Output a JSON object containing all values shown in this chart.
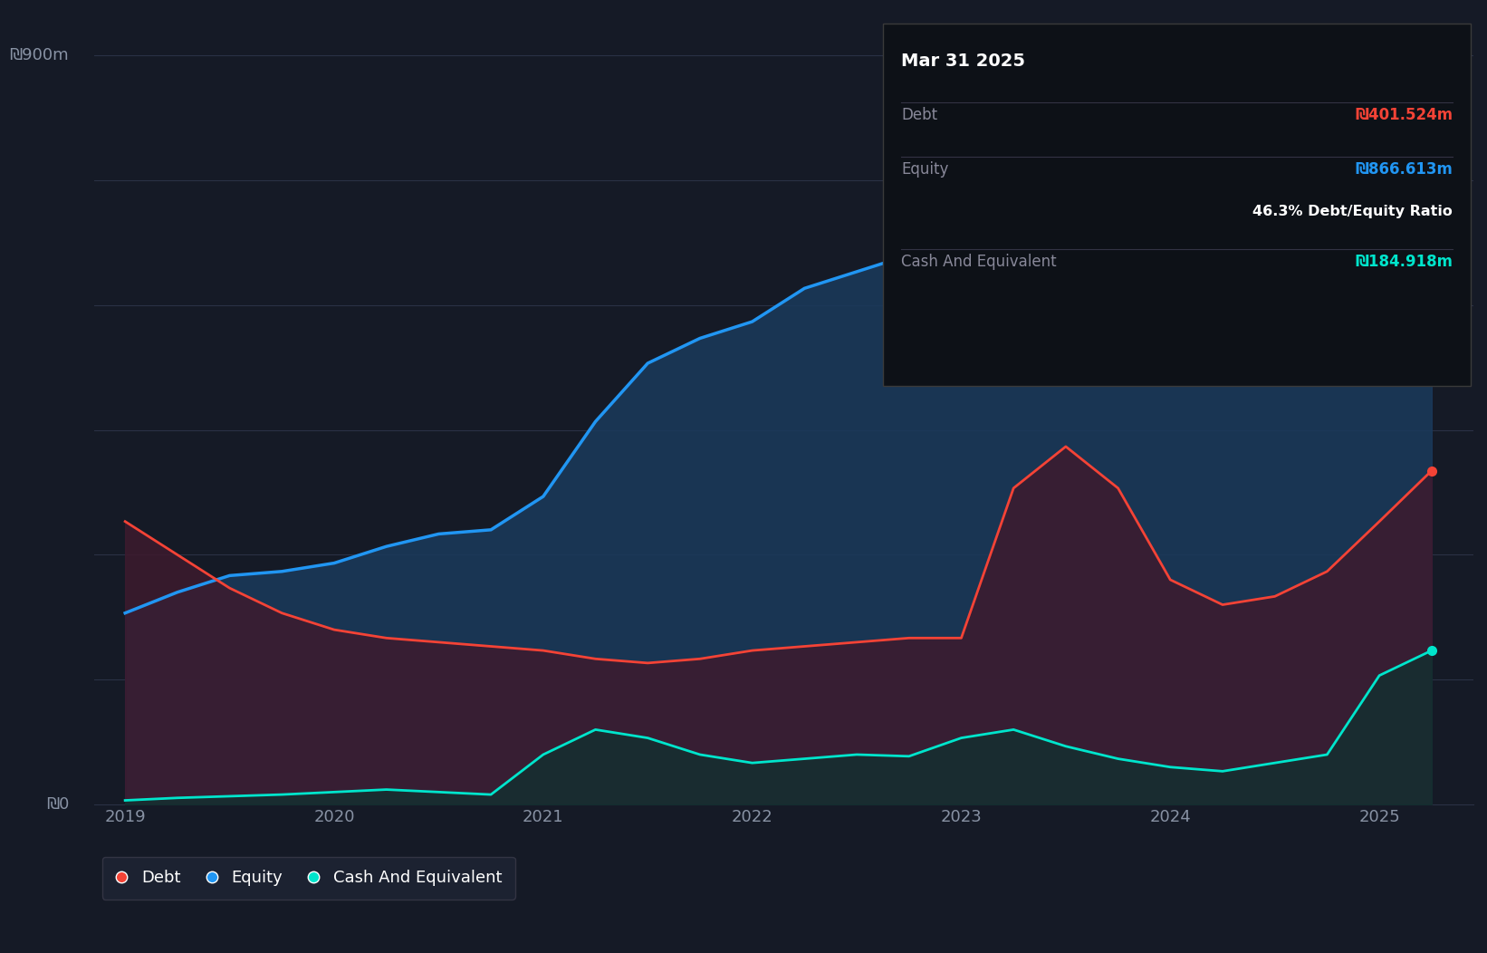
{
  "background_color": "#151a26",
  "plot_bg_color": "#151a26",
  "grid_color": "#2a3145",
  "text_color": "#ffffff",
  "axis_label_color": "#8892a4",
  "years": [
    2019.0,
    2019.25,
    2019.5,
    2019.75,
    2020.0,
    2020.25,
    2020.5,
    2020.75,
    2021.0,
    2021.25,
    2021.5,
    2021.75,
    2022.0,
    2022.25,
    2022.5,
    2022.75,
    2023.0,
    2023.25,
    2023.5,
    2023.75,
    2024.0,
    2024.25,
    2024.5,
    2024.75,
    2025.0,
    2025.25
  ],
  "equity": [
    230,
    255,
    275,
    280,
    290,
    310,
    325,
    330,
    370,
    460,
    530,
    560,
    580,
    620,
    640,
    660,
    680,
    720,
    740,
    730,
    710,
    760,
    820,
    870,
    880,
    866
  ],
  "debt": [
    340,
    300,
    260,
    230,
    210,
    200,
    195,
    190,
    185,
    175,
    170,
    175,
    185,
    190,
    195,
    200,
    200,
    380,
    430,
    380,
    270,
    240,
    250,
    280,
    340,
    401
  ],
  "cash": [
    5,
    8,
    10,
    12,
    15,
    18,
    15,
    12,
    60,
    90,
    80,
    60,
    50,
    55,
    60,
    58,
    80,
    90,
    70,
    55,
    45,
    40,
    50,
    60,
    155,
    185
  ],
  "equity_color": "#2196f3",
  "equity_fill_color": "#1a3a5c",
  "debt_color": "#f44336",
  "debt_fill_color": "#3d1a2e",
  "cash_color": "#00e5cc",
  "cash_fill_color": "#0d3330",
  "ylim": [
    0,
    950
  ],
  "xtick_labels": [
    "2019",
    "2020",
    "2021",
    "2022",
    "2023",
    "2024",
    "2025"
  ],
  "xtick_positions": [
    2019,
    2020,
    2021,
    2022,
    2023,
    2024,
    2025
  ],
  "tooltip_title": "Mar 31 2025",
  "tooltip_debt_label": "Debt",
  "tooltip_debt_value": "₪401.524m",
  "tooltip_equity_label": "Equity",
  "tooltip_equity_value": "₪866.613m",
  "tooltip_ratio": "46.3% Debt/Equity Ratio",
  "tooltip_cash_label": "Cash And Equivalent",
  "tooltip_cash_value": "₪184.918m",
  "legend_items": [
    {
      "label": "Debt",
      "color": "#f44336"
    },
    {
      "label": "Equity",
      "color": "#2196f3"
    },
    {
      "label": "Cash And Equivalent",
      "color": "#00e5cc"
    }
  ]
}
